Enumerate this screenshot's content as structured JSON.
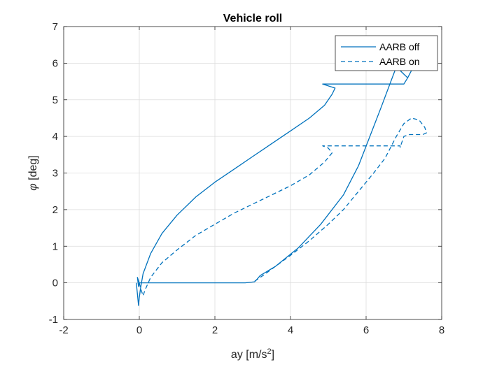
{
  "chart_data": {
    "type": "line",
    "title": "Vehicle roll",
    "xlabel": "ay [m/s",
    "xlabel_sup": "2",
    "xlabel_end": "]",
    "ylabel_symbol": "φ",
    "ylabel_rest": " [deg]",
    "xlim": [
      -2,
      8
    ],
    "ylim": [
      -1,
      7
    ],
    "xticks": [
      -2,
      0,
      2,
      4,
      6,
      8
    ],
    "yticks": [
      -1,
      0,
      1,
      2,
      3,
      4,
      5,
      6,
      7
    ],
    "grid": true,
    "legend_position": "top-right",
    "color": "#0072BD",
    "series": [
      {
        "name": "AARB off",
        "style": "solid",
        "points": [
          [
            -0.08,
            0.0
          ],
          [
            -0.05,
            -0.3
          ],
          [
            -0.02,
            -0.62
          ],
          [
            0.0,
            -0.4
          ],
          [
            0.04,
            -0.1
          ],
          [
            0.1,
            0.25
          ],
          [
            0.3,
            0.8
          ],
          [
            0.6,
            1.35
          ],
          [
            1.0,
            1.85
          ],
          [
            1.5,
            2.35
          ],
          [
            2.0,
            2.75
          ],
          [
            2.5,
            3.1
          ],
          [
            3.0,
            3.45
          ],
          [
            3.5,
            3.8
          ],
          [
            4.0,
            4.15
          ],
          [
            4.5,
            4.5
          ],
          [
            4.9,
            4.85
          ],
          [
            5.1,
            5.15
          ],
          [
            5.18,
            5.32
          ],
          [
            4.85,
            5.43
          ],
          [
            7.0,
            5.43
          ],
          [
            7.1,
            5.6
          ],
          [
            7.2,
            5.8
          ],
          [
            7.1,
            5.6
          ],
          [
            7.0,
            5.7
          ],
          [
            6.8,
            5.9
          ],
          [
            6.4,
            4.8
          ],
          [
            6.1,
            4.0
          ],
          [
            5.8,
            3.2
          ],
          [
            5.4,
            2.4
          ],
          [
            4.8,
            1.6
          ],
          [
            4.2,
            0.95
          ],
          [
            3.6,
            0.45
          ],
          [
            3.2,
            0.2
          ],
          [
            3.1,
            0.08
          ],
          [
            3.05,
            0.03
          ],
          [
            2.8,
            0.0
          ],
          [
            1.5,
            0.0
          ],
          [
            0.2,
            0.0
          ],
          [
            0.0,
            0.0
          ],
          [
            -0.05,
            0.15
          ],
          [
            -0.02,
            -0.1
          ],
          [
            0.0,
            0.0
          ]
        ]
      },
      {
        "name": "AARB on",
        "style": "dashed",
        "points": [
          [
            0.0,
            0.0
          ],
          [
            0.05,
            -0.2
          ],
          [
            0.1,
            -0.35
          ],
          [
            0.15,
            -0.2
          ],
          [
            0.3,
            0.15
          ],
          [
            0.6,
            0.55
          ],
          [
            1.0,
            0.9
          ],
          [
            1.5,
            1.3
          ],
          [
            2.0,
            1.6
          ],
          [
            2.5,
            1.9
          ],
          [
            3.0,
            2.15
          ],
          [
            3.5,
            2.4
          ],
          [
            4.0,
            2.65
          ],
          [
            4.5,
            2.95
          ],
          [
            4.9,
            3.3
          ],
          [
            5.1,
            3.55
          ],
          [
            5.0,
            3.68
          ],
          [
            4.85,
            3.74
          ],
          [
            6.9,
            3.74
          ],
          [
            6.9,
            3.7
          ],
          [
            7.0,
            4.0
          ],
          [
            7.15,
            4.05
          ],
          [
            7.5,
            4.05
          ],
          [
            7.6,
            4.1
          ],
          [
            7.55,
            4.25
          ],
          [
            7.4,
            4.45
          ],
          [
            7.2,
            4.5
          ],
          [
            7.0,
            4.35
          ],
          [
            6.8,
            4.0
          ],
          [
            6.5,
            3.4
          ],
          [
            6.2,
            3.0
          ],
          [
            5.8,
            2.5
          ],
          [
            5.4,
            2.0
          ],
          [
            5.0,
            1.6
          ],
          [
            4.5,
            1.15
          ],
          [
            4.0,
            0.75
          ],
          [
            3.6,
            0.45
          ],
          [
            3.3,
            0.22
          ],
          [
            3.1,
            0.08
          ],
          [
            3.0,
            0.0
          ]
        ]
      }
    ]
  }
}
